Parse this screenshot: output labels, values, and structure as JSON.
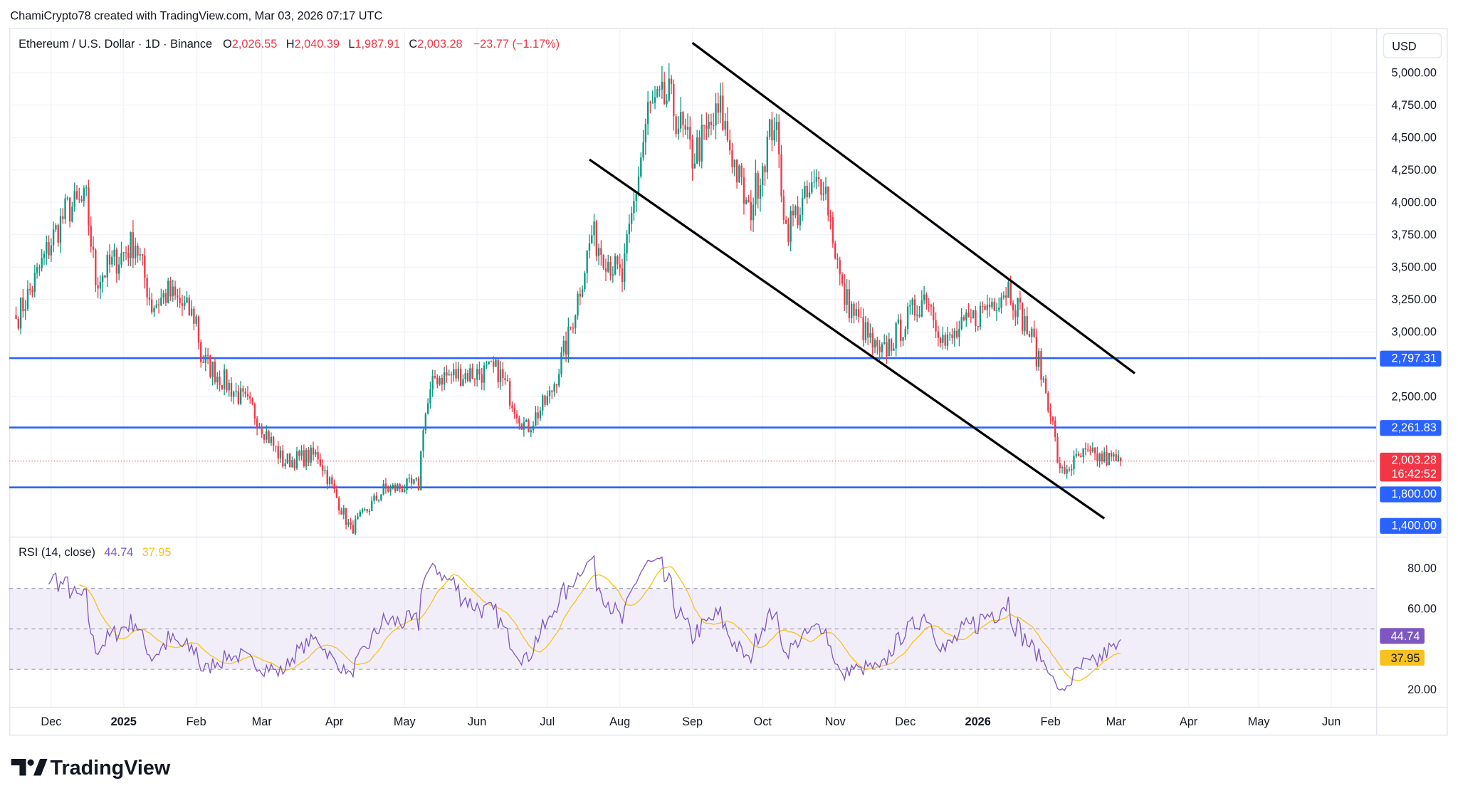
{
  "attribution": "ChamiCrypto78 created with TradingView.com, Mar 03, 2026 07:17 UTC",
  "legend": {
    "symbol": "Ethereum / U.S. Dollar · 1D · Binance",
    "open_label": "O",
    "open": "2,026.55",
    "high_label": "H",
    "high": "2,040.39",
    "low_label": "L",
    "low": "1,987.91",
    "close_label": "C",
    "close": "2,003.28",
    "change": "−23.77 (−1.17%)"
  },
  "rsi_legend": {
    "label": "RSI (14, close)",
    "rsi": "44.74",
    "sma": "37.95"
  },
  "currency_button": "USD",
  "logo_text": "TradingView",
  "colors": {
    "up": "#089981",
    "down": "#f23645",
    "level": "#2962ff",
    "rsi": "#7e57c2",
    "rsi_ma": "#f7c11f"
  },
  "chart_data": {
    "type": "candlestick",
    "title": "Ethereum / U.S. Dollar · 1D · Binance",
    "price_ticks": [
      "5,000.00",
      "4,750.00",
      "4,500.00",
      "4,250.00",
      "4,000.00",
      "3,750.00",
      "3,500.00",
      "3,250.00",
      "3,000.00",
      "2,500.00"
    ],
    "price_tick_values": [
      5000,
      4750,
      4500,
      4250,
      4000,
      3750,
      3500,
      3250,
      3000,
      2500
    ],
    "time_ticks": [
      {
        "label": "Dec",
        "date": "2024-12-01",
        "bold": false
      },
      {
        "label": "2025",
        "date": "2025-01-01",
        "bold": true
      },
      {
        "label": "Feb",
        "date": "2025-02-01",
        "bold": false
      },
      {
        "label": "Mar",
        "date": "2025-03-01",
        "bold": false
      },
      {
        "label": "Apr",
        "date": "2025-04-01",
        "bold": false
      },
      {
        "label": "May",
        "date": "2025-05-01",
        "bold": false
      },
      {
        "label": "Jun",
        "date": "2025-06-01",
        "bold": false
      },
      {
        "label": "Jul",
        "date": "2025-07-01",
        "bold": false
      },
      {
        "label": "Aug",
        "date": "2025-08-01",
        "bold": false
      },
      {
        "label": "Sep",
        "date": "2025-09-01",
        "bold": false
      },
      {
        "label": "Oct",
        "date": "2025-10-01",
        "bold": false
      },
      {
        "label": "Nov",
        "date": "2025-11-01",
        "bold": false
      },
      {
        "label": "Dec",
        "date": "2025-12-01",
        "bold": false
      },
      {
        "label": "2026",
        "date": "2026-01-01",
        "bold": true
      },
      {
        "label": "Feb",
        "date": "2026-02-01",
        "bold": false
      },
      {
        "label": "Mar",
        "date": "2026-03-01",
        "bold": false
      },
      {
        "label": "Apr",
        "date": "2026-04-01",
        "bold": false
      },
      {
        "label": "May",
        "date": "2026-05-01",
        "bold": false
      },
      {
        "label": "Jun",
        "date": "2026-06-01",
        "bold": false
      }
    ],
    "close_waypoints": [
      [
        "2024-11-16",
        3100
      ],
      [
        "2024-11-23",
        3350
      ],
      [
        "2024-12-01",
        3700
      ],
      [
        "2024-12-08",
        3950
      ],
      [
        "2024-12-16",
        4000
      ],
      [
        "2024-12-20",
        3400
      ],
      [
        "2025-01-06",
        3700
      ],
      [
        "2025-01-13",
        3200
      ],
      [
        "2025-01-20",
        3300
      ],
      [
        "2025-02-01",
        3100
      ],
      [
        "2025-02-03",
        2800
      ],
      [
        "2025-02-25",
        2400
      ],
      [
        "2025-03-10",
        2000
      ],
      [
        "2025-03-25",
        2050
      ],
      [
        "2025-04-08",
        1470
      ],
      [
        "2025-04-22",
        1780
      ],
      [
        "2025-05-07",
        1820
      ],
      [
        "2025-05-09",
        2300
      ],
      [
        "2025-05-14",
        2650
      ],
      [
        "2025-06-10",
        2700
      ],
      [
        "2025-06-22",
        2250
      ],
      [
        "2025-07-02",
        2500
      ],
      [
        "2025-07-10",
        2950
      ],
      [
        "2025-07-20",
        3750
      ],
      [
        "2025-08-02",
        3400
      ],
      [
        "2025-08-13",
        4700
      ],
      [
        "2025-08-22",
        4800
      ],
      [
        "2025-09-01",
        4350
      ],
      [
        "2025-09-13",
        4700
      ],
      [
        "2025-09-25",
        3900
      ],
      [
        "2025-10-06",
        4650
      ],
      [
        "2025-10-11",
        3800
      ],
      [
        "2025-10-27",
        4200
      ],
      [
        "2025-11-04",
        3300
      ],
      [
        "2025-11-20",
        2800
      ],
      [
        "2025-12-10",
        3300
      ],
      [
        "2025-12-18",
        2900
      ],
      [
        "2026-01-05",
        3200
      ],
      [
        "2026-01-14",
        3350
      ],
      [
        "2026-01-25",
        2900
      ],
      [
        "2026-02-01",
        2400
      ],
      [
        "2026-02-05",
        1900
      ],
      [
        "2026-02-15",
        2050
      ],
      [
        "2026-03-03",
        2003.28
      ]
    ],
    "horizontal_levels": [
      {
        "price": 2797.31,
        "label": "2,797.31"
      },
      {
        "price": 2261.83,
        "label": "2,261.83"
      },
      {
        "price": 1800,
        "label": "1,800.00"
      }
    ],
    "extra_level_label": "1,400.00",
    "last_price": {
      "price": 2003.28,
      "label": "2,003.28",
      "countdown": "16:42:52"
    },
    "trendlines": [
      {
        "name": "channel-upper",
        "from": [
          "2025-09-01",
          5230
        ],
        "to": [
          "2026-03-09",
          2680
        ]
      },
      {
        "name": "channel-lower",
        "from": [
          "2025-07-19",
          4330
        ],
        "to": [
          "2026-02-24",
          1560
        ]
      }
    ],
    "rsi": {
      "period": 14,
      "ma_period": 14,
      "last": 44.74,
      "ma_last": 37.95,
      "ticks": [
        "80.00",
        "60.00",
        "20.00"
      ],
      "tick_values": [
        80,
        60,
        20
      ],
      "band": [
        30,
        70
      ]
    }
  }
}
